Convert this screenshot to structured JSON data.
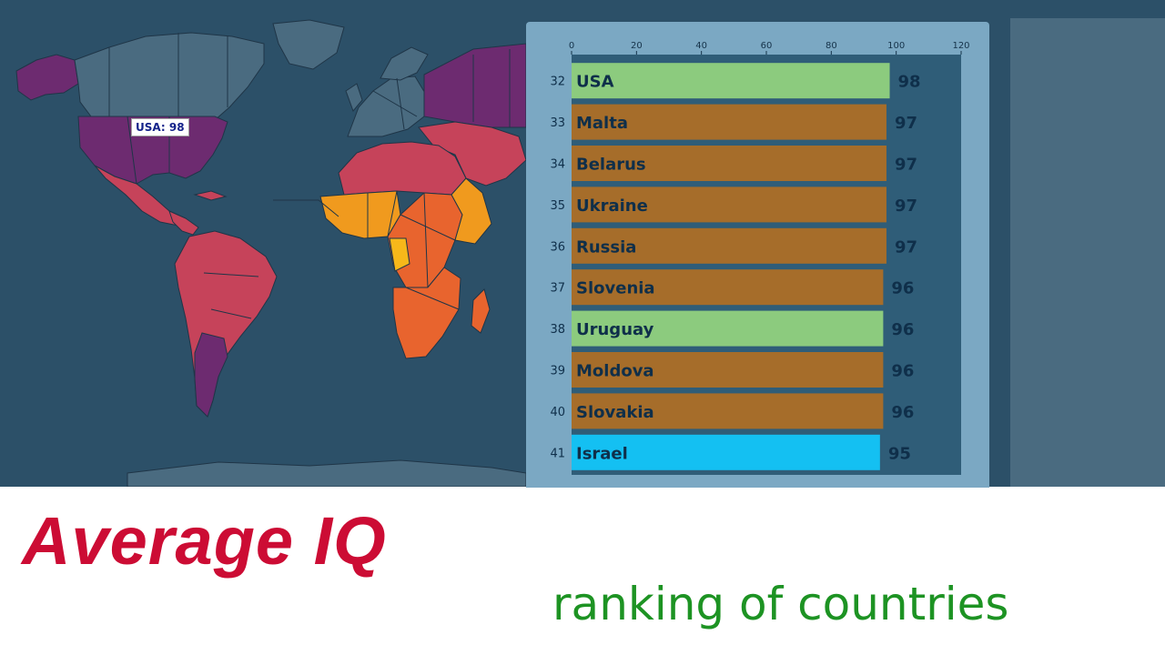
{
  "map": {
    "label": "USA: 98",
    "colors": {
      "ocean": "#2c5068",
      "unranked_land": "#4a6b80",
      "purple": "#6d2b70",
      "red": "#c6435a",
      "orange": "#e8642e",
      "amber": "#f09a1e",
      "yellow": "#f7b81a",
      "border": "#1f3547"
    }
  },
  "titles": {
    "main": "Average IQ",
    "sub": "ranking of countries"
  },
  "chart_data": {
    "type": "bar",
    "orientation": "horizontal",
    "ranks": [
      "32",
      "33",
      "34",
      "35",
      "36",
      "37",
      "38",
      "39",
      "40",
      "41"
    ],
    "categories": [
      "USA",
      "Malta",
      "Belarus",
      "Ukraine",
      "Russia",
      "Slovenia",
      "Uruguay",
      "Moldova",
      "Slovakia",
      "Israel"
    ],
    "values": [
      98,
      97,
      97,
      97,
      97,
      96,
      96,
      96,
      96,
      95
    ],
    "value_labels": [
      "98",
      "97",
      "97",
      "97",
      "97",
      "96",
      "96",
      "96",
      "96",
      "95"
    ],
    "bar_colors": [
      "#8ccb7e",
      "#a66d2a",
      "#a66d2a",
      "#a66d2a",
      "#a66d2a",
      "#a66d2a",
      "#8ccb7e",
      "#a66d2a",
      "#a66d2a",
      "#14c0f2"
    ],
    "xticks": [
      "0",
      "20",
      "40",
      "60",
      "80",
      "100",
      "120"
    ],
    "xlim": [
      0,
      120
    ],
    "plot_background": "#2f5d78",
    "label_color": "#0f2f4a",
    "title": "",
    "xlabel": "",
    "ylabel": ""
  }
}
